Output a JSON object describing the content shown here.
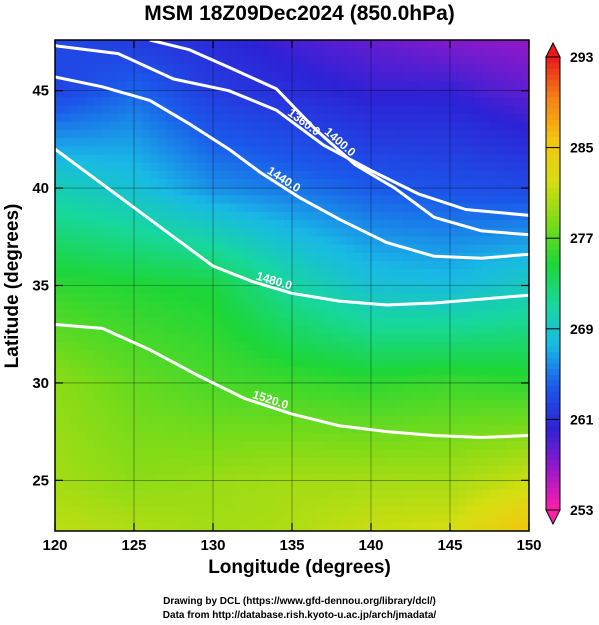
{
  "title": "MSM 18Z09Dec2024 (850.0hPa)",
  "credits": {
    "line1": "Drawing by DCL (https://www.gfd-dennou.org/library/dcl/)",
    "line2": "Data from http://database.rish.kyoto-u.ac.jp/arch/jmadata/"
  },
  "chart_data": {
    "type": "heatmap",
    "title": "MSM 18Z09Dec2024 (850.0hPa)",
    "xlabel": "Longitude (degrees)",
    "ylabel": "Latitude  (degrees)",
    "xlim": [
      120,
      150
    ],
    "ylim": [
      22.4,
      47.6
    ],
    "x_ticks": [
      120,
      125,
      130,
      135,
      140,
      145,
      150
    ],
    "y_ticks": [
      25,
      30,
      35,
      40,
      45
    ],
    "grid": true,
    "colorbar": {
      "min": 253,
      "max": 293,
      "ticks": [
        253,
        261,
        269,
        277,
        285,
        293
      ],
      "colors": [
        "#ff1fa8",
        "#9a18c9",
        "#2d22d6",
        "#1b58ea",
        "#19b8e6",
        "#17d79d",
        "#1dd638",
        "#7fdb18",
        "#d6de10",
        "#f4c40f",
        "#f58317",
        "#e81a1a"
      ],
      "position": "right"
    },
    "temperature_field_K": {
      "lon": [
        120,
        125,
        130,
        135,
        140,
        145,
        150
      ],
      "lat": [
        47.5,
        45,
        40,
        35,
        30,
        25,
        22.5
      ],
      "values": [
        [
          263.0,
          262.0,
          261.0,
          259.5,
          258.5,
          257.5,
          257.0
        ],
        [
          262.5,
          264.5,
          262.0,
          261.0,
          260.0,
          260.0,
          258.5
        ],
        [
          270.0,
          268.5,
          266.0,
          265.0,
          264.0,
          263.5,
          263.0
        ],
        [
          275.5,
          275.0,
          274.5,
          271.0,
          268.5,
          268.0,
          269.5
        ],
        [
          279.0,
          277.5,
          276.5,
          276.0,
          275.5,
          276.0,
          275.5
        ],
        [
          280.0,
          279.0,
          279.5,
          280.0,
          280.0,
          280.0,
          281.5
        ],
        [
          281.0,
          280.5,
          280.0,
          280.5,
          281.5,
          282.0,
          285.5
        ]
      ]
    },
    "height_contours": [
      {
        "label": "1360.0",
        "points": [
          [
            120,
            47.3
          ],
          [
            124,
            46.9
          ],
          [
            127.5,
            45.6
          ],
          [
            131,
            45.0
          ],
          [
            134,
            44.0
          ],
          [
            137,
            42.2
          ],
          [
            140,
            40.9
          ],
          [
            143,
            39.7
          ],
          [
            146,
            38.9
          ],
          [
            150,
            38.6
          ]
        ]
      },
      {
        "label": "1400.0",
        "points": [
          [
            126,
            47.6
          ],
          [
            128.5,
            47.1
          ],
          [
            131,
            46.2
          ],
          [
            134,
            45.1
          ],
          [
            136.5,
            43.0
          ],
          [
            139,
            41.2
          ],
          [
            141.5,
            40.0
          ],
          [
            144,
            38.5
          ],
          [
            147,
            37.8
          ],
          [
            150,
            37.6
          ]
        ]
      },
      {
        "label": "1440.0",
        "points": [
          [
            120,
            45.7
          ],
          [
            123,
            45.2
          ],
          [
            126,
            44.5
          ],
          [
            128.5,
            43.3
          ],
          [
            131,
            42.0
          ],
          [
            133,
            40.8
          ],
          [
            135.5,
            39.5
          ],
          [
            138,
            38.4
          ],
          [
            141,
            37.2
          ],
          [
            144,
            36.5
          ],
          [
            147,
            36.4
          ],
          [
            150,
            36.6
          ]
        ]
      },
      {
        "label": "1480.0",
        "points": [
          [
            120,
            42.0
          ],
          [
            122.5,
            40.5
          ],
          [
            125,
            39.0
          ],
          [
            127.5,
            37.5
          ],
          [
            130,
            36.0
          ],
          [
            132.5,
            35.2
          ],
          [
            135,
            34.6
          ],
          [
            138,
            34.2
          ],
          [
            141,
            34.0
          ],
          [
            144,
            34.1
          ],
          [
            147,
            34.3
          ],
          [
            150,
            34.5
          ]
        ]
      },
      {
        "label": "1520.0",
        "points": [
          [
            120,
            33.0
          ],
          [
            123,
            32.8
          ],
          [
            126,
            31.7
          ],
          [
            129,
            30.4
          ],
          [
            132,
            29.2
          ],
          [
            135,
            28.4
          ],
          [
            138,
            27.8
          ],
          [
            141,
            27.5
          ],
          [
            144,
            27.3
          ],
          [
            147,
            27.2
          ],
          [
            150,
            27.3
          ]
        ]
      }
    ]
  }
}
